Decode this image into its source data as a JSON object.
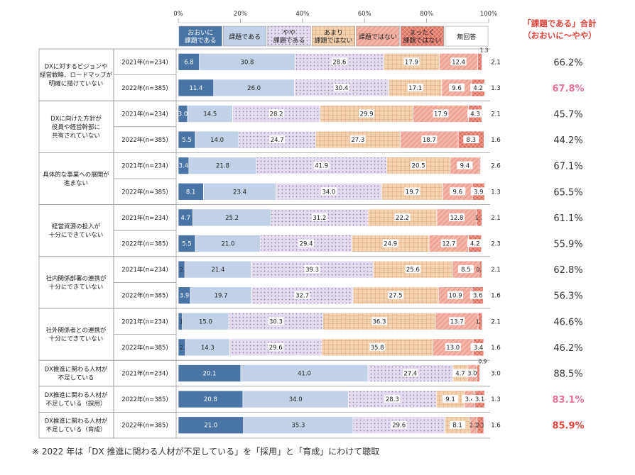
{
  "summary_header": {
    "line1": "「課題である」合計",
    "line2": "（おおいに～やや）"
  },
  "note": "※ 2022 年は「DX 推進に関わる人材が不足している」を「採用」と「育成」にわけて聴取",
  "chart_data": {
    "type": "bar",
    "orientation": "horizontal",
    "stacked": true,
    "percent_axis": {
      "min": 0,
      "max": 100,
      "ticks": [
        "0%",
        "20%",
        "40%",
        "60%",
        "80%",
        "100%"
      ]
    },
    "legend": {
      "placement": "top",
      "items": [
        {
          "label": "おおいに\n課題である",
          "color": "#4a74a6",
          "pattern": "solid"
        },
        {
          "label": "課題である",
          "color": "#c3d1e8",
          "pattern": "solid"
        },
        {
          "label": "やや\n課題である",
          "color": "#ddd4e8",
          "pattern": "dots"
        },
        {
          "label": "あまり\n課題ではない",
          "color": "#f1cda9",
          "pattern": "grid"
        },
        {
          "label": "課題ではない",
          "color": "#f0a899",
          "pattern": "diagonal"
        },
        {
          "label": "まったく\n課題ではない",
          "color": "#d96a5c",
          "pattern": "cross"
        },
        {
          "label": "無回答",
          "color": "#ffffff",
          "pattern": "solid"
        }
      ]
    },
    "groups": [
      {
        "label": "DXに対するビジョンや\n経営戦略、ロードマップが\n明確に描けていない",
        "rows": [
          {
            "year": "2021年(n=234)",
            "values": [
              6.8,
              30.8,
              28.6,
              17.9,
              12.4,
              1.3,
              2.1
            ],
            "total": "66.2%",
            "highlight": "none"
          },
          {
            "year": "2022年(n=385)",
            "values": [
              11.4,
              26.0,
              30.4,
              17.1,
              9.6,
              4.2,
              1.3
            ],
            "total": "67.8%",
            "highlight": "pink"
          }
        ]
      },
      {
        "label": "DXに向けた方針が\n役員や経営幹部に\n共有されていない",
        "rows": [
          {
            "year": "2021年(n=234)",
            "values": [
              3.0,
              14.5,
              28.2,
              29.9,
              17.9,
              4.3,
              2.1
            ],
            "total": "45.7%",
            "highlight": "none"
          },
          {
            "year": "2022年(n=385)",
            "values": [
              5.5,
              14.0,
              24.7,
              27.3,
              18.7,
              8.3,
              1.6
            ],
            "total": "44.2%",
            "highlight": "none"
          }
        ]
      },
      {
        "label": "具体的な事業への展開が\n進まない",
        "rows": [
          {
            "year": "2021年(n=234)",
            "values": [
              3.4,
              21.8,
              41.9,
              20.5,
              9.4,
              0.4,
              2.6
            ],
            "total": "67.1%",
            "highlight": "none"
          },
          {
            "year": "2022年(n=385)",
            "values": [
              8.1,
              23.4,
              34.0,
              19.7,
              9.6,
              3.9,
              1.3
            ],
            "total": "65.5%",
            "highlight": "none"
          }
        ]
      },
      {
        "label": "経営資源の投入が\n十分にできていない",
        "rows": [
          {
            "year": "2021年(n=234)",
            "values": [
              4.7,
              25.2,
              31.2,
              22.2,
              12.8,
              1.7,
              2.1
            ],
            "total": "61.1%",
            "highlight": "none"
          },
          {
            "year": "2022年(n=385)",
            "values": [
              5.5,
              21.0,
              29.4,
              24.9,
              12.7,
              4.2,
              2.3
            ],
            "total": "55.9%",
            "highlight": "none"
          }
        ]
      },
      {
        "label": "社内関係部署の連携が\n十分にできていない",
        "rows": [
          {
            "year": "2021年(n=234)",
            "values": [
              2.1,
              21.4,
              39.3,
              25.6,
              8.5,
              0.9,
              2.1
            ],
            "total": "62.8%",
            "highlight": "none"
          },
          {
            "year": "2022年(n=385)",
            "values": [
              3.9,
              19.7,
              32.7,
              27.5,
              10.9,
              3.6,
              1.6
            ],
            "total": "56.3%",
            "highlight": "none"
          }
        ]
      },
      {
        "label": "社外関係者との連携が\n十分にできていない",
        "rows": [
          {
            "year": "2021年(n=234)",
            "values": [
              1.3,
              15.0,
              30.3,
              36.3,
              13.7,
              1.3,
              2.1
            ],
            "total": "46.6%",
            "highlight": "none"
          },
          {
            "year": "2022年(n=385)",
            "values": [
              2.3,
              14.3,
              29.6,
              35.8,
              13.0,
              3.4,
              1.6
            ],
            "total": "46.2%",
            "highlight": "none"
          }
        ]
      },
      {
        "label": "DX推進に関わる人材が\n不足している",
        "rows": [
          {
            "year": "2021年(n=234)",
            "values": [
              20.1,
              41.0,
              27.4,
              4.7,
              3.0,
              0.9,
              3.0
            ],
            "total": "88.5%",
            "highlight": "none"
          }
        ]
      },
      {
        "label": "DX推進に関わる人材が\n不足している（採用）",
        "rows": [
          {
            "year": "2022年(n=385)",
            "values": [
              20.8,
              34.0,
              28.3,
              9.1,
              3.4,
              3.1,
              1.3
            ],
            "total": "83.1%",
            "highlight": "pink"
          }
        ]
      },
      {
        "label": "DX推進に関わる人材が\n不足している（育成）",
        "rows": [
          {
            "year": "2022年(n=385)",
            "values": [
              21.0,
              35.3,
              29.6,
              8.1,
              2.3,
              2.1,
              1.6
            ],
            "total": "85.9%",
            "highlight": "red"
          }
        ]
      }
    ],
    "label_rules": {
      "hidden_inside": [
        [
          2,
          0,
          5
        ]
      ],
      "outside_above": [
        [
          0,
          0,
          5
        ],
        [
          6,
          0,
          5
        ]
      ],
      "outside_below": []
    },
    "colors": {
      "highlight_pink": "#e8739a",
      "highlight_red": "#e0443a",
      "total_default": "#333333"
    }
  }
}
